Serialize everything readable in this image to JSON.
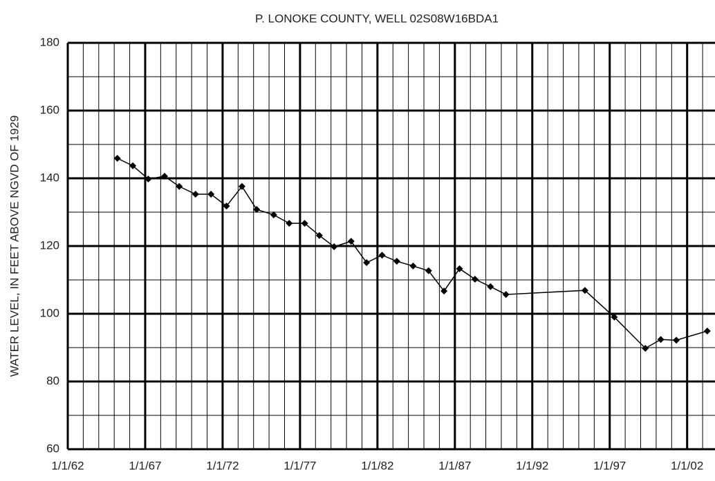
{
  "chart_data": {
    "type": "line",
    "title": "P. LONOKE COUNTY, WELL 02S08W16BDA1",
    "ylabel": "WATER LEVEL,  IN  FEET ABOVE NGVD OF 1929",
    "xlim": [
      1962,
      2003.8
    ],
    "xticks": [
      {
        "value": 1962,
        "label": "1/1/62"
      },
      {
        "value": 1967,
        "label": "1/1/67"
      },
      {
        "value": 1972,
        "label": "1/1/72"
      },
      {
        "value": 1977,
        "label": "1/1/77"
      },
      {
        "value": 1982,
        "label": "1/1/82"
      },
      {
        "value": 1987,
        "label": "1/1/87"
      },
      {
        "value": 1992,
        "label": "1/1/92"
      },
      {
        "value": 1997,
        "label": "1/1/97"
      },
      {
        "value": 2002,
        "label": "1/1/02"
      }
    ],
    "xminorticks": [
      1963,
      1964,
      1965,
      1966,
      1968,
      1969,
      1970,
      1971,
      1973,
      1974,
      1975,
      1976,
      1978,
      1979,
      1980,
      1981,
      1983,
      1984,
      1985,
      1986,
      1988,
      1989,
      1990,
      1991,
      1993,
      1994,
      1995,
      1996,
      1998,
      1999,
      2000,
      2001,
      2003
    ],
    "ylim": [
      60,
      180
    ],
    "yticks": [
      60,
      80,
      100,
      120,
      140,
      160,
      180
    ],
    "yminorticks": [
      70,
      90,
      110,
      130,
      150,
      170
    ],
    "grid": true,
    "series": [
      {
        "color": "#000000",
        "x": [
          1965.2,
          1966.2,
          1967.2,
          1968.25,
          1969.2,
          1970.25,
          1971.25,
          1972.25,
          1973.25,
          1974.2,
          1975.3,
          1976.3,
          1977.3,
          1978.25,
          1979.2,
          1980.3,
          1981.3,
          1982.3,
          1983.25,
          1984.3,
          1985.3,
          1986.3,
          1987.3,
          1988.3,
          1989.3,
          1990.3,
          1995.4,
          1997.3,
          1999.3,
          2000.3,
          2001.3,
          2003.3
        ],
        "values": [
          145.9,
          143.7,
          139.8,
          140.6,
          137.6,
          135.3,
          135.3,
          131.8,
          137.6,
          130.8,
          129.2,
          126.7,
          126.7,
          123.1,
          119.8,
          121.4,
          115.1,
          117.3,
          115.5,
          114.1,
          112.7,
          106.7,
          113.3,
          110.2,
          108.0,
          105.7,
          106.9,
          99.0,
          89.8,
          92.4,
          92.2,
          94.9
        ]
      }
    ]
  }
}
